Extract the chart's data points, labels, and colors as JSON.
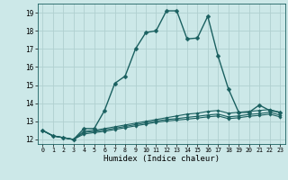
{
  "title": "",
  "xlabel": "Humidex (Indice chaleur)",
  "ylabel": "",
  "background_color": "#cce8e8",
  "grid_color": "#b0d0d0",
  "line_color": "#1a6060",
  "x_values": [
    0,
    1,
    2,
    3,
    4,
    5,
    6,
    7,
    8,
    9,
    10,
    11,
    12,
    13,
    14,
    15,
    16,
    17,
    18,
    19,
    20,
    21,
    22,
    23
  ],
  "series": [
    [
      12.5,
      12.2,
      12.1,
      12.0,
      12.6,
      12.6,
      13.6,
      15.1,
      15.5,
      17.0,
      17.9,
      18.0,
      19.1,
      19.1,
      17.55,
      17.6,
      18.8,
      16.6,
      14.8,
      13.5,
      13.5,
      13.9,
      13.6,
      13.5
    ],
    [
      12.5,
      12.2,
      12.1,
      12.0,
      12.45,
      12.5,
      12.6,
      12.7,
      12.8,
      12.9,
      13.0,
      13.1,
      13.2,
      13.3,
      13.4,
      13.45,
      13.55,
      13.6,
      13.45,
      13.5,
      13.55,
      13.6,
      13.65,
      13.5
    ],
    [
      12.5,
      12.2,
      12.1,
      12.0,
      12.38,
      12.45,
      12.52,
      12.62,
      12.72,
      12.82,
      12.92,
      13.02,
      13.1,
      13.15,
      13.22,
      13.28,
      13.35,
      13.4,
      13.25,
      13.3,
      13.38,
      13.43,
      13.5,
      13.35
    ],
    [
      12.5,
      12.2,
      12.1,
      12.0,
      12.3,
      12.38,
      12.45,
      12.55,
      12.65,
      12.75,
      12.85,
      12.95,
      13.02,
      13.07,
      13.12,
      13.18,
      13.25,
      13.3,
      13.15,
      13.2,
      13.28,
      13.33,
      13.4,
      13.25
    ]
  ],
  "ylim": [
    11.75,
    19.5
  ],
  "yticks": [
    12,
    13,
    14,
    15,
    16,
    17,
    18,
    19
  ],
  "xlim": [
    -0.5,
    23.5
  ]
}
